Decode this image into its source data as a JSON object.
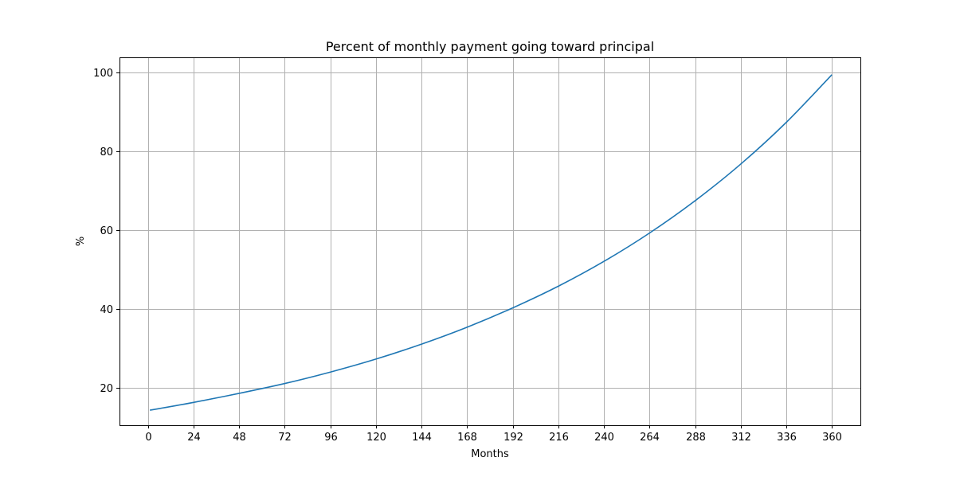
{
  "chart_data": {
    "type": "line",
    "title": "Percent of monthly payment going toward principal",
    "xlabel": "Months",
    "ylabel": "%",
    "xlim": [
      -15,
      375
    ],
    "ylim": [
      10.5,
      103.9
    ],
    "xticks": [
      0,
      24,
      48,
      72,
      96,
      120,
      144,
      168,
      192,
      216,
      240,
      264,
      288,
      312,
      336,
      360
    ],
    "yticks": [
      20,
      40,
      60,
      80,
      100
    ],
    "grid": true,
    "series": [
      {
        "name": "",
        "color": "#1f77b4",
        "points": [
          [
            1,
            14.32
          ],
          [
            24,
            16.3
          ],
          [
            48,
            18.6
          ],
          [
            72,
            21.1
          ],
          [
            96,
            24.0
          ],
          [
            120,
            27.3
          ],
          [
            144,
            31.1
          ],
          [
            168,
            35.4
          ],
          [
            192,
            40.3
          ],
          [
            216,
            45.8
          ],
          [
            240,
            52.1
          ],
          [
            264,
            59.3
          ],
          [
            288,
            67.5
          ],
          [
            312,
            76.8
          ],
          [
            336,
            87.4
          ],
          [
            360,
            99.5
          ]
        ]
      }
    ]
  }
}
